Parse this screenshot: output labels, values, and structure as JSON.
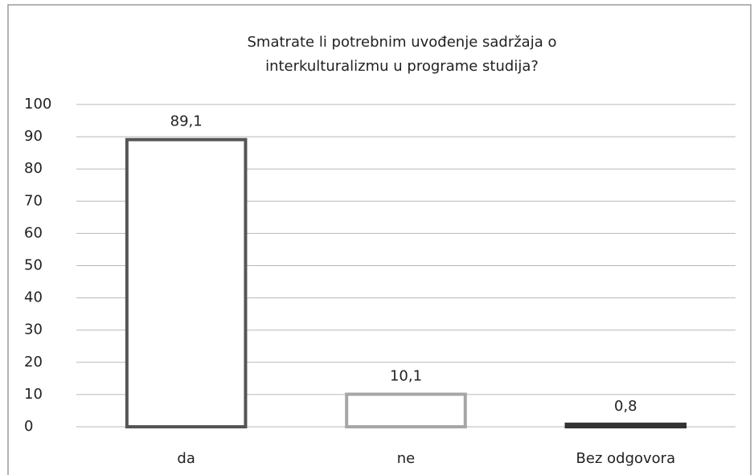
{
  "chart_data": {
    "type": "bar",
    "title": "Smatrate li potrebnim uvođenje sadržaja o interkulturalizmu u programe studija?",
    "categories": [
      "da",
      "ne",
      "Bez odgovora"
    ],
    "values": [
      89.1,
      10.1,
      0.8
    ],
    "value_labels": [
      "89,1",
      "10,1",
      "0,8"
    ],
    "colors": [
      "#555555",
      "#a6a6a6",
      "#333333"
    ],
    "ylim": [
      0,
      100
    ],
    "yticks": [
      0,
      10,
      20,
      30,
      40,
      50,
      60,
      70,
      80,
      90,
      100
    ],
    "grid": true
  }
}
